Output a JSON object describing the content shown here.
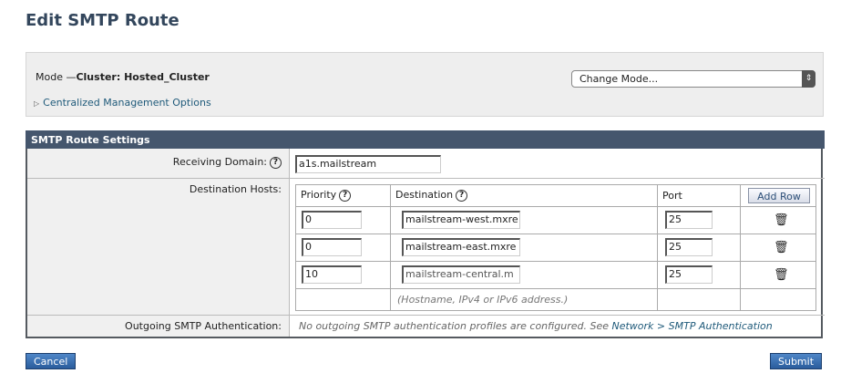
{
  "page_title": "Edit SMTP Route",
  "mode": {
    "label": "Mode —",
    "value": "Cluster: Hosted_Cluster",
    "change_mode": "Change Mode...",
    "centralized_link": "Centralized Management Options"
  },
  "settings": {
    "header": "SMTP Route Settings",
    "receiving_domain_label": "Receiving Domain:",
    "receiving_domain_value": "a1s.mailstream",
    "destination_hosts_label": "Destination Hosts:",
    "columns": {
      "priority": "Priority",
      "destination": "Destination",
      "port": "Port",
      "add_row": "Add Row"
    },
    "rows": [
      {
        "priority": "0",
        "destination": "mailstream-west.mxre",
        "port": "25"
      },
      {
        "priority": "0",
        "destination": "mailstream-east.mxre",
        "port": "25"
      },
      {
        "priority": "10",
        "destination": "mailstream-central.m",
        "port": "25"
      }
    ],
    "hint": "(Hostname, IPv4 or IPv6 address.)",
    "outgoing_label": "Outgoing SMTP Authentication:",
    "outgoing_text": "No outgoing SMTP authentication profiles are configured. See",
    "outgoing_link": "Network > SMTP Authentication"
  },
  "buttons": {
    "cancel": "Cancel",
    "submit": "Submit"
  },
  "help_glyph": "?",
  "icons": {
    "help": "question-circle-icon",
    "delete": "trash-icon",
    "expand": "triangle-right-icon"
  }
}
